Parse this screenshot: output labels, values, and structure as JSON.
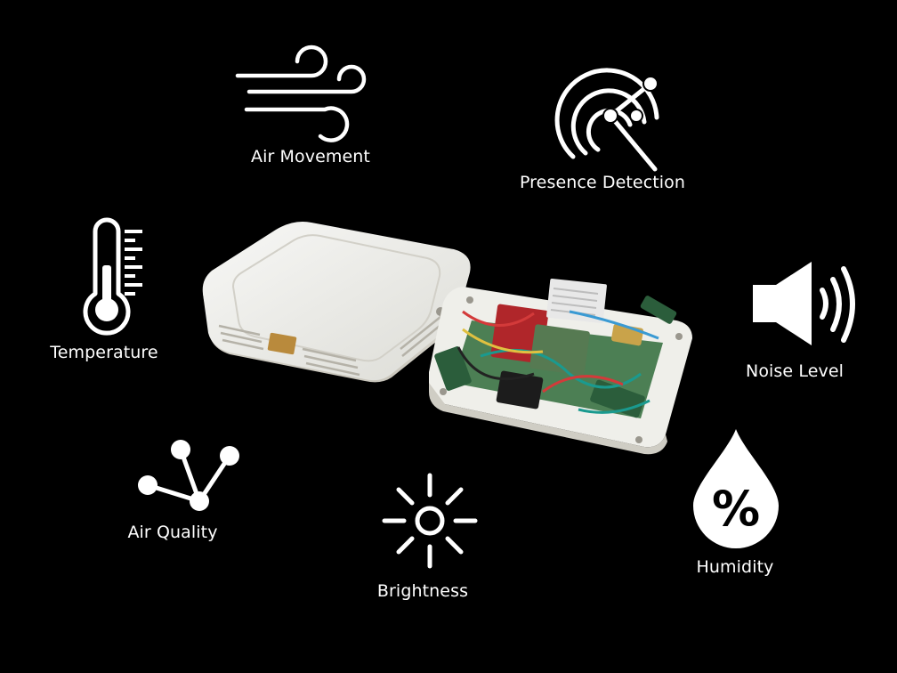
{
  "features": {
    "air_movement": {
      "label": "Air Movement",
      "icon": "wind-icon"
    },
    "presence_detection": {
      "label": "Presence Detection",
      "icon": "radar-icon"
    },
    "temperature": {
      "label": "Temperature",
      "icon": "thermometer-icon"
    },
    "noise_level": {
      "label": "Noise Level",
      "icon": "speaker-icon"
    },
    "air_quality": {
      "label": "Air Quality",
      "icon": "molecule-icon"
    },
    "brightness": {
      "label": "Brightness",
      "icon": "sun-icon"
    },
    "humidity": {
      "label": "Humidity",
      "icon": "water-drop-percent-icon",
      "symbol": "%"
    }
  },
  "colors": {
    "background": "#000000",
    "foreground": "#ffffff",
    "case": "#eeeeea",
    "pcb": "#2f6b3a"
  }
}
